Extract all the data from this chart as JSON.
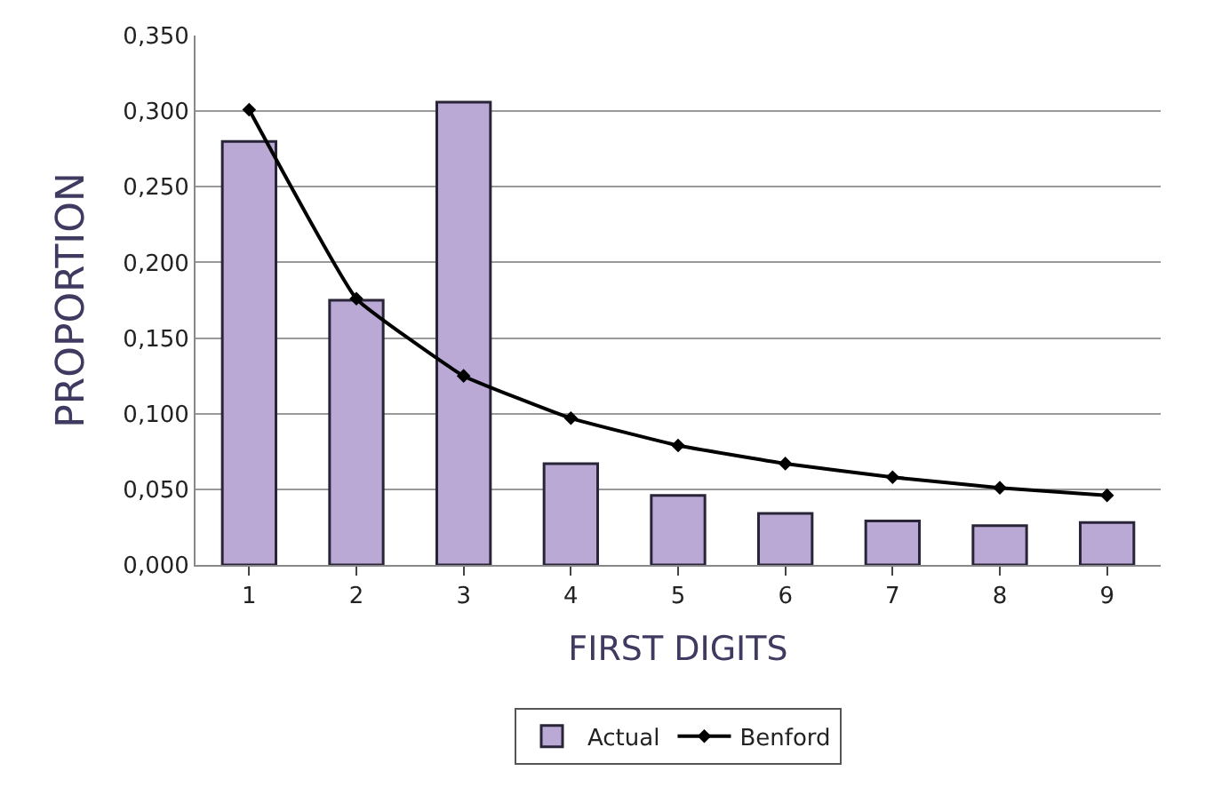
{
  "chart_data": {
    "type": "bar",
    "xlabel": "FIRST DIGITS",
    "ylabel": "PROPORTION",
    "categories": [
      "1",
      "2",
      "3",
      "4",
      "5",
      "6",
      "7",
      "8",
      "9"
    ],
    "series": [
      {
        "name": "Actual",
        "color": "#b9a9d4",
        "values": [
          0.28,
          0.175,
          0.306,
          0.067,
          0.046,
          0.034,
          0.029,
          0.026,
          0.028
        ]
      },
      {
        "name": "Benford",
        "type": "line",
        "color": "#000000",
        "marker": "diamond",
        "values": [
          0.301,
          0.176,
          0.125,
          0.097,
          0.079,
          0.067,
          0.058,
          0.051,
          0.046
        ]
      }
    ],
    "ylim": [
      0,
      0.35
    ],
    "yticks": [
      {
        "value": 0,
        "label": "0,000"
      },
      {
        "value": 0.05,
        "label": "0,050"
      },
      {
        "value": 0.1,
        "label": "0,100"
      },
      {
        "value": 0.15,
        "label": "0,150"
      },
      {
        "value": 0.2,
        "label": "0,200"
      },
      {
        "value": 0.25,
        "label": "0,250"
      },
      {
        "value": 0.3,
        "label": "0,300"
      },
      {
        "value": 0.35,
        "label": "0,350"
      }
    ],
    "grid": "y",
    "legend": "bottom"
  }
}
